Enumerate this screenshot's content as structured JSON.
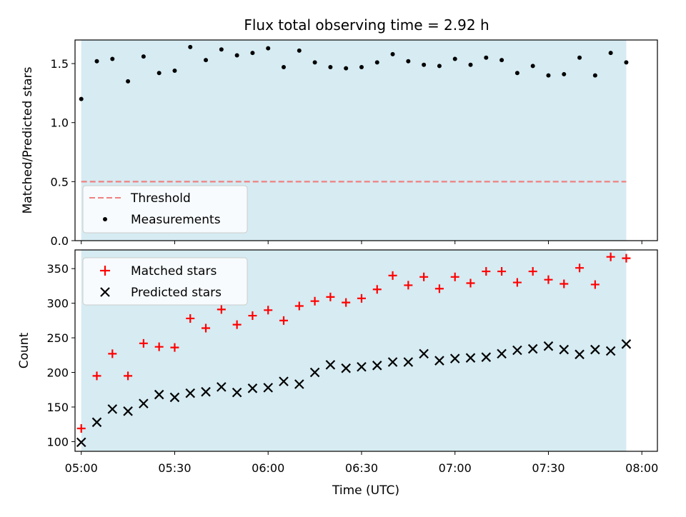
{
  "title": "Flux total observing time = 2.92 h",
  "colors": {
    "band": "#add8e6",
    "threshold": "#f08080",
    "measurement": "#000000",
    "matched": "#ff0000",
    "predicted": "#000000"
  },
  "chart_data": [
    {
      "type": "scatter",
      "panel": "top",
      "title": "Flux total observing time = 2.92 h",
      "ylabel": "Matched/Predicted stars",
      "xlabel": "",
      "ylim": [
        0,
        1.7
      ],
      "xlim": [
        "04:58",
        "08:05"
      ],
      "yticks": [
        "0.0",
        "0.5",
        "1.0",
        "1.5"
      ],
      "shaded_interval": [
        "05:00",
        "07:55"
      ],
      "legend": {
        "placement": "lower-left",
        "entries": [
          "Threshold",
          "Measurements"
        ]
      },
      "threshold": {
        "name": "Threshold",
        "value": 0.5,
        "style": "dashed"
      },
      "series": [
        {
          "name": "Measurements",
          "marker": "dot",
          "x": [
            "05:00",
            "05:05",
            "05:10",
            "05:15",
            "05:20",
            "05:25",
            "05:30",
            "05:35",
            "05:40",
            "05:45",
            "05:50",
            "05:55",
            "06:00",
            "06:05",
            "06:10",
            "06:15",
            "06:20",
            "06:25",
            "06:30",
            "06:35",
            "06:40",
            "06:45",
            "06:50",
            "06:55",
            "07:00",
            "07:05",
            "07:10",
            "07:15",
            "07:20",
            "07:25",
            "07:30",
            "07:35",
            "07:40",
            "07:45",
            "07:50",
            "07:55"
          ],
          "y": [
            1.2,
            1.52,
            1.54,
            1.35,
            1.56,
            1.42,
            1.44,
            1.64,
            1.53,
            1.62,
            1.57,
            1.59,
            1.63,
            1.47,
            1.61,
            1.51,
            1.47,
            1.46,
            1.47,
            1.51,
            1.58,
            1.52,
            1.49,
            1.48,
            1.54,
            1.49,
            1.55,
            1.53,
            1.42,
            1.48,
            1.4,
            1.41,
            1.55,
            1.4,
            1.59,
            1.51
          ]
        }
      ]
    },
    {
      "type": "scatter",
      "panel": "bottom",
      "ylabel": "Count",
      "xlabel": "Time (UTC)",
      "ylim": [
        86,
        377
      ],
      "xlim": [
        "04:58",
        "08:05"
      ],
      "yticks": [
        "100",
        "150",
        "200",
        "250",
        "300",
        "350"
      ],
      "xticks": [
        "05:00",
        "05:30",
        "06:00",
        "06:30",
        "07:00",
        "07:30",
        "08:00"
      ],
      "shaded_interval": [
        "05:00",
        "07:55"
      ],
      "legend": {
        "placement": "upper-left",
        "entries": [
          "Matched stars",
          "Predicted stars"
        ]
      },
      "x": [
        "05:00",
        "05:05",
        "05:10",
        "05:15",
        "05:20",
        "05:25",
        "05:30",
        "05:35",
        "05:40",
        "05:45",
        "05:50",
        "05:55",
        "06:00",
        "06:05",
        "06:10",
        "06:15",
        "06:20",
        "06:25",
        "06:30",
        "06:35",
        "06:40",
        "06:45",
        "06:50",
        "06:55",
        "07:00",
        "07:05",
        "07:10",
        "07:15",
        "07:20",
        "07:25",
        "07:30",
        "07:35",
        "07:40",
        "07:45",
        "07:50",
        "07:55"
      ],
      "series": [
        {
          "name": "Matched stars",
          "marker": "plus",
          "values": [
            119,
            195,
            227,
            195,
            242,
            237,
            236,
            278,
            264,
            291,
            269,
            282,
            290,
            275,
            296,
            303,
            309,
            301,
            307,
            320,
            340,
            326,
            338,
            321,
            338,
            329,
            346,
            346,
            330,
            346,
            334,
            328,
            351,
            327,
            367,
            365
          ]
        },
        {
          "name": "Predicted stars",
          "marker": "x",
          "values": [
            99,
            128,
            147,
            144,
            155,
            168,
            164,
            170,
            172,
            179,
            171,
            177,
            178,
            187,
            183,
            200,
            211,
            206,
            208,
            210,
            215,
            215,
            227,
            217,
            220,
            221,
            222,
            227,
            232,
            234,
            238,
            233,
            226,
            233,
            231,
            241
          ]
        }
      ]
    }
  ]
}
